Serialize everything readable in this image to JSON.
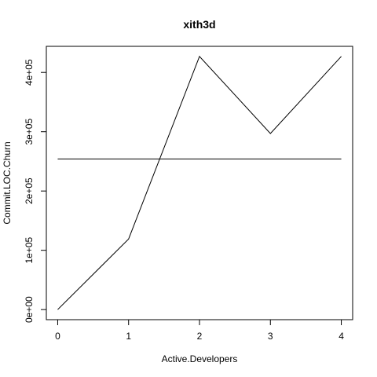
{
  "chart_data": {
    "type": "line",
    "title": "xith3d",
    "xlabel": "Active.Developers",
    "ylabel": "Commit.LOC.Churn",
    "x": [
      0,
      1,
      2,
      3,
      4
    ],
    "x_ticks": [
      "0",
      "1",
      "2",
      "3",
      "4"
    ],
    "y_ticks": [
      {
        "value": 0,
        "label": "0e+00"
      },
      {
        "value": 100000,
        "label": "1e+05"
      },
      {
        "value": 200000,
        "label": "2e+05"
      },
      {
        "value": 300000,
        "label": "3e+05"
      },
      {
        "value": 400000,
        "label": "4e+05"
      }
    ],
    "xlim": [
      -0.16,
      4.16
    ],
    "ylim": [
      -17000,
      444000
    ],
    "series": [
      {
        "values": [
          0,
          119000,
          427000,
          297000,
          427000
        ]
      }
    ],
    "hline": 254000,
    "grid": false,
    "legend": "none"
  }
}
